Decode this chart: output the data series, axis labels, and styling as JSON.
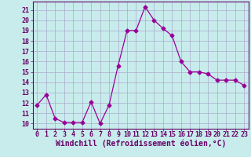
{
  "x": [
    0,
    1,
    2,
    3,
    4,
    5,
    6,
    7,
    8,
    9,
    10,
    11,
    12,
    13,
    14,
    15,
    16,
    17,
    18,
    19,
    20,
    21,
    22,
    23
  ],
  "y": [
    11.8,
    12.8,
    10.5,
    10.1,
    10.1,
    10.1,
    12.1,
    10.0,
    11.8,
    15.6,
    19.0,
    19.0,
    21.3,
    20.0,
    19.2,
    18.5,
    16.0,
    15.0,
    15.0,
    14.8,
    14.2,
    14.2,
    14.2,
    13.7
  ],
  "line_color": "#990099",
  "marker": "D",
  "markersize": 2.5,
  "linewidth": 0.9,
  "xlabel": "Windchill (Refroidissement éolien,°C)",
  "xlabel_fontsize": 7.0,
  "xlim": [
    -0.5,
    23.5
  ],
  "ylim": [
    9.5,
    21.8
  ],
  "yticks": [
    10,
    11,
    12,
    13,
    14,
    15,
    16,
    17,
    18,
    19,
    20,
    21
  ],
  "xticks": [
    0,
    1,
    2,
    3,
    4,
    5,
    6,
    7,
    8,
    9,
    10,
    11,
    12,
    13,
    14,
    15,
    16,
    17,
    18,
    19,
    20,
    21,
    22,
    23
  ],
  "background_color": "#c8ecec",
  "grid_color": "#aaaacc",
  "tick_fontsize": 6.0,
  "tick_color": "#660066",
  "spine_color": "#660066"
}
